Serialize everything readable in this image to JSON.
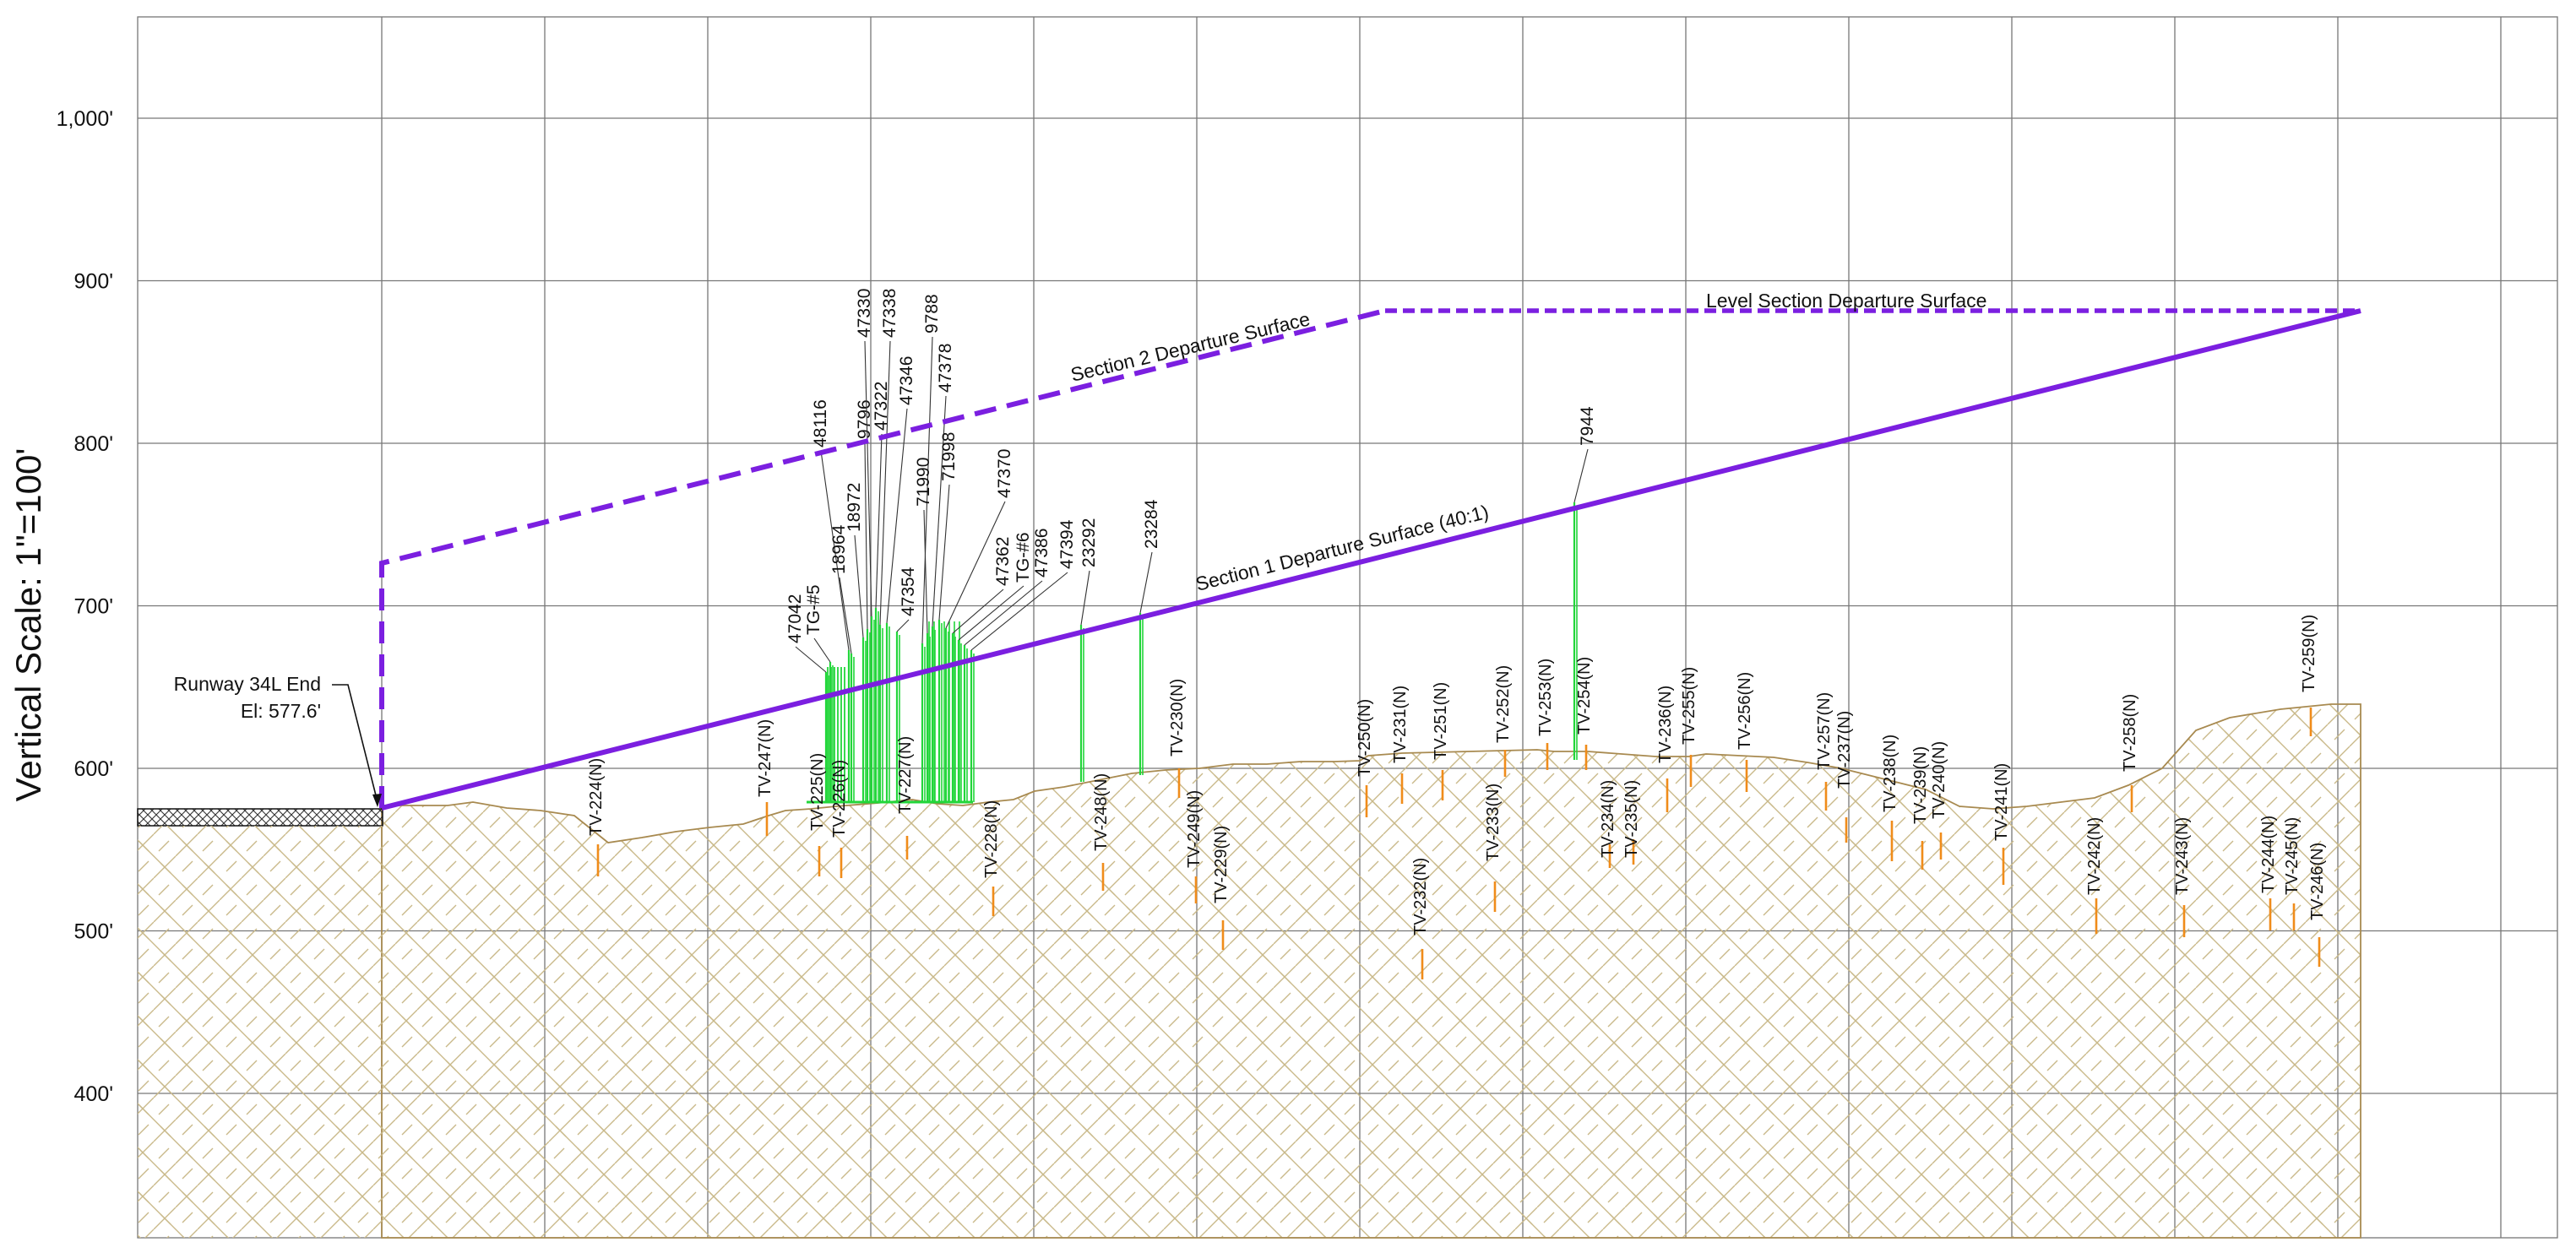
{
  "axis": {
    "title": "Vertical Scale: 1\"=100'",
    "ticks": [
      {
        "elev": 1000,
        "label": "1,000'"
      },
      {
        "elev": 900,
        "label": "900'"
      },
      {
        "elev": 800,
        "label": "800'"
      },
      {
        "elev": 700,
        "label": "700'"
      },
      {
        "elev": 600,
        "label": "600'"
      },
      {
        "elev": 500,
        "label": "500'"
      },
      {
        "elev": 400,
        "label": "400'"
      }
    ]
  },
  "runway": {
    "name": "Runway 34L End",
    "elevation_label": "El: 577.6'",
    "elevation": 577.6
  },
  "surfaces": {
    "section1": "Section 1 Departure Surface (40:1)",
    "section2": "Section 2 Departure Surface",
    "level": "Level Section Departure Surface"
  },
  "colors": {
    "surface": "#7b1fe0",
    "obstruction": "#22d63a",
    "tv_marker": "#f08c1a",
    "terrain_edge": "#a88a50",
    "terrain_hatch": "#c9b98a",
    "grid": "#777777"
  },
  "obstructions": [
    "47042",
    "TG-#5",
    "48116",
    "18964",
    "18972",
    "9796",
    "47330",
    "47322",
    "47338",
    "47346",
    "47354",
    "9788",
    "71990",
    "47378",
    "71998",
    "47370",
    "47362",
    "TG-#6",
    "47386",
    "47394",
    "23292",
    "23284",
    "7944"
  ],
  "tv_points": [
    "TV-224(N)",
    "TV-247(N)",
    "TV-225(N)",
    "TV-226(N)",
    "TV-227(N)",
    "TV-228(N)",
    "TV-248(N)",
    "TV-230(N)",
    "TV-249(N)",
    "TV-229(N)",
    "TV-250(N)",
    "TV-231(N)",
    "TV-251(N)",
    "TV-232(N)",
    "TV-233(N)",
    "TV-252(N)",
    "TV-253(N)",
    "TV-254(N)",
    "TV-234(N)",
    "TV-235(N)",
    "TV-236(N)",
    "TV-255(N)",
    "TV-256(N)",
    "TV-257(N)",
    "TV-237(N)",
    "TV-238(N)",
    "TV-239(N)",
    "TV-240(N)",
    "TV-241(N)",
    "TV-242(N)",
    "TV-258(N)",
    "TV-243(N)",
    "TV-244(N)",
    "TV-245(N)",
    "TV-246(N)",
    "TV-259(N)"
  ]
}
